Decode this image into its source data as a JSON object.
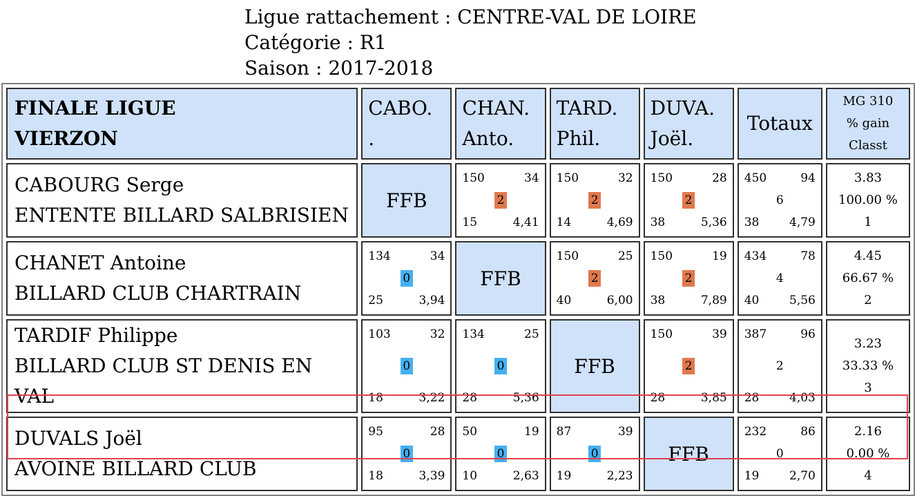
{
  "header": {
    "ligue": "Ligue rattachement : CENTRE-VAL DE LOIRE",
    "categorie": "Catégorie : R1",
    "saison": "Saison : 2017-2018"
  },
  "table": {
    "title_line1": "FINALE LIGUE",
    "title_line2": "VIERZON",
    "columns": [
      {
        "line1": "CABO.",
        "line2": "."
      },
      {
        "line1": "CHAN.",
        "line2": "Anto."
      },
      {
        "line1": "TARD.",
        "line2": "Phil."
      },
      {
        "line1": "DUVA.",
        "line2": "Joël."
      }
    ],
    "totals_header": "Totaux",
    "mg_header": {
      "line1": "MG 310",
      "line2": "% gain",
      "line3": "Classt"
    },
    "ffb": "FFB",
    "rows": [
      {
        "name": "CABOURG Serge",
        "club": "ENTENTE BILLARD SALBRISIEN",
        "matches": [
          null,
          {
            "tl": "150",
            "tr": "34",
            "pts": "2",
            "bl": "15",
            "br": "4,41"
          },
          {
            "tl": "150",
            "tr": "32",
            "pts": "2",
            "bl": "14",
            "br": "4,69"
          },
          {
            "tl": "150",
            "tr": "28",
            "pts": "2",
            "bl": "38",
            "br": "5,36"
          }
        ],
        "totals": {
          "tl": "450",
          "tr": "94",
          "mid": "6",
          "bl": "38",
          "br": "4,79"
        },
        "summary": {
          "mg": "3.83",
          "pct": "100.00 %",
          "rank": "1"
        }
      },
      {
        "name": "CHANET Antoine",
        "club": "BILLARD CLUB CHARTRAIN",
        "matches": [
          {
            "tl": "134",
            "tr": "34",
            "pts": "0",
            "bl": "25",
            "br": "3,94"
          },
          null,
          {
            "tl": "150",
            "tr": "25",
            "pts": "2",
            "bl": "40",
            "br": "6,00"
          },
          {
            "tl": "150",
            "tr": "19",
            "pts": "2",
            "bl": "38",
            "br": "7,89"
          }
        ],
        "totals": {
          "tl": "434",
          "tr": "78",
          "mid": "4",
          "bl": "40",
          "br": "5,56"
        },
        "summary": {
          "mg": "4.45",
          "pct": "66.67 %",
          "rank": "2"
        }
      },
      {
        "name": "TARDIF Philippe",
        "club": "BILLARD CLUB ST DENIS EN VAL",
        "matches": [
          {
            "tl": "103",
            "tr": "32",
            "pts": "0",
            "bl": "18",
            "br": "3,22"
          },
          {
            "tl": "134",
            "tr": "25",
            "pts": "0",
            "bl": "28",
            "br": "5,36"
          },
          null,
          {
            "tl": "150",
            "tr": "39",
            "pts": "2",
            "bl": "28",
            "br": "3,85"
          }
        ],
        "totals": {
          "tl": "387",
          "tr": "96",
          "mid": "2",
          "bl": "28",
          "br": "4,03"
        },
        "summary": {
          "mg": "3.23",
          "pct": "33.33 %",
          "rank": "3"
        }
      },
      {
        "name": "DUVALS Joël",
        "club": "AVOINE BILLARD CLUB",
        "matches": [
          {
            "tl": "95",
            "tr": "28",
            "pts": "0",
            "bl": "18",
            "br": "3,39"
          },
          {
            "tl": "50",
            "tr": "19",
            "pts": "0",
            "bl": "10",
            "br": "2,63"
          },
          {
            "tl": "87",
            "tr": "39",
            "pts": "0",
            "bl": "19",
            "br": "2,23"
          },
          null
        ],
        "totals": {
          "tl": "232",
          "tr": "86",
          "mid": "0",
          "bl": "19",
          "br": "2,70"
        },
        "summary": {
          "mg": "2.16",
          "pct": "0.00 %",
          "rank": "4"
        }
      }
    ]
  },
  "colors": {
    "header_blue": "#cfe2fa",
    "win_orange": "#e0794d",
    "loss_blue": "#44b0f0",
    "highlight_red": "#e2414e"
  }
}
